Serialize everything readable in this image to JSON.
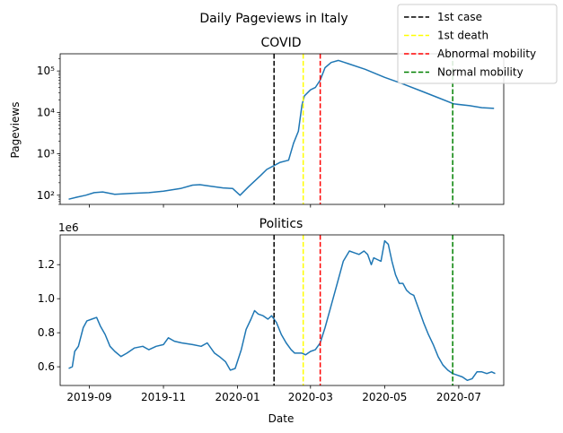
{
  "chart_data": [
    {
      "type": "line",
      "suptitle": "Daily Pageviews in Italy",
      "title": "COVID",
      "xlabel": "",
      "ylabel": "Pageviews",
      "yscale": "log",
      "ylim": [
        60,
        260000
      ],
      "yticks": [
        100,
        1000,
        10000,
        100000
      ],
      "ytick_labels": [
        "10²",
        "10³",
        "10⁴",
        "10⁵"
      ],
      "series": [
        {
          "color": "#1f77b4",
          "x": [
            "2019-08-15",
            "2019-08-22",
            "2019-08-29",
            "2019-09-05",
            "2019-09-12",
            "2019-09-22",
            "2019-10-05",
            "2019-10-20",
            "2019-11-01",
            "2019-11-15",
            "2019-11-25",
            "2019-12-01",
            "2019-12-10",
            "2019-12-20",
            "2019-12-28",
            "2020-01-03",
            "2020-01-10",
            "2020-01-20",
            "2020-01-25",
            "2020-01-31",
            "2020-02-05",
            "2020-02-12",
            "2020-02-16",
            "2020-02-20",
            "2020-02-23",
            "2020-02-25",
            "2020-03-01",
            "2020-03-05",
            "2020-03-09",
            "2020-03-13",
            "2020-03-18",
            "2020-03-24",
            "2020-04-01",
            "2020-04-15",
            "2020-05-01",
            "2020-05-15",
            "2020-06-01",
            "2020-06-15",
            "2020-06-27",
            "2020-07-10",
            "2020-07-20",
            "2020-07-30"
          ],
          "y": [
            80,
            90,
            100,
            115,
            120,
            105,
            110,
            115,
            125,
            145,
            175,
            180,
            165,
            150,
            145,
            100,
            160,
            300,
            420,
            520,
            620,
            700,
            1800,
            3500,
            15000,
            25000,
            35000,
            40000,
            60000,
            120000,
            160000,
            180000,
            150000,
            110000,
            70000,
            50000,
            32000,
            22000,
            16000,
            14500,
            13000,
            12500
          ]
        }
      ],
      "vlines": [
        {
          "date": "2020-01-31",
          "label": "1st case",
          "color": "#000000"
        },
        {
          "date": "2020-02-24",
          "label": "1st death",
          "color": "#ffff00"
        },
        {
          "date": "2020-03-09",
          "label": "Abnormal mobility",
          "color": "#ff0000"
        },
        {
          "date": "2020-06-26",
          "label": "Normal mobility",
          "color": "#008000"
        }
      ]
    },
    {
      "type": "line",
      "title": "Politics",
      "xlabel": "Date",
      "ylabel": "",
      "offset_label": "1e6",
      "ylim": [
        0.49,
        1.375
      ],
      "yticks": [
        0.6,
        0.8,
        1.0,
        1.2
      ],
      "ytick_labels": [
        "0.6",
        "0.8",
        "1.0",
        "1.2"
      ],
      "xticks": [
        "2019-09-01",
        "2019-11-01",
        "2020-01-01",
        "2020-03-01",
        "2020-05-01",
        "2020-07-01"
      ],
      "xtick_labels": [
        "2019-09",
        "2019-11",
        "2020-01",
        "2020-03",
        "2020-05",
        "2020-07"
      ],
      "series": [
        {
          "color": "#1f77b4",
          "x": [
            "2019-08-15",
            "2019-08-18",
            "2019-08-20",
            "2019-08-23",
            "2019-08-27",
            "2019-08-30",
            "2019-09-03",
            "2019-09-07",
            "2019-09-10",
            "2019-09-14",
            "2019-09-18",
            "2019-09-22",
            "2019-09-27",
            "2019-10-02",
            "2019-10-08",
            "2019-10-15",
            "2019-10-20",
            "2019-10-26",
            "2019-11-01",
            "2019-11-05",
            "2019-11-10",
            "2019-11-16",
            "2019-11-25",
            "2019-12-02",
            "2019-12-07",
            "2019-12-13",
            "2019-12-17",
            "2019-12-22",
            "2019-12-26",
            "2019-12-30",
            "2020-01-04",
            "2020-01-08",
            "2020-01-12",
            "2020-01-15",
            "2020-01-18",
            "2020-01-22",
            "2020-01-26",
            "2020-01-29",
            "2020-02-02",
            "2020-02-06",
            "2020-02-10",
            "2020-02-14",
            "2020-02-17",
            "2020-02-20",
            "2020-02-23",
            "2020-02-26",
            "2020-03-01",
            "2020-03-05",
            "2020-03-09",
            "2020-03-13",
            "2020-03-18",
            "2020-03-23",
            "2020-03-28",
            "2020-04-02",
            "2020-04-06",
            "2020-04-10",
            "2020-04-14",
            "2020-04-17",
            "2020-04-20",
            "2020-04-22",
            "2020-04-25",
            "2020-04-28",
            "2020-05-01",
            "2020-05-04",
            "2020-05-07",
            "2020-05-10",
            "2020-05-13",
            "2020-05-16",
            "2020-05-19",
            "2020-05-22",
            "2020-05-25",
            "2020-05-29",
            "2020-06-02",
            "2020-06-06",
            "2020-06-10",
            "2020-06-14",
            "2020-06-18",
            "2020-06-22",
            "2020-06-26",
            "2020-06-30",
            "2020-07-04",
            "2020-07-08",
            "2020-07-12",
            "2020-07-16",
            "2020-07-20",
            "2020-07-24",
            "2020-07-28",
            "2020-07-31"
          ],
          "y": [
            0.59,
            0.6,
            0.69,
            0.72,
            0.83,
            0.87,
            0.88,
            0.89,
            0.84,
            0.79,
            0.72,
            0.69,
            0.66,
            0.68,
            0.71,
            0.72,
            0.7,
            0.72,
            0.73,
            0.77,
            0.75,
            0.74,
            0.73,
            0.72,
            0.74,
            0.68,
            0.66,
            0.63,
            0.58,
            0.59,
            0.7,
            0.82,
            0.88,
            0.93,
            0.91,
            0.9,
            0.88,
            0.9,
            0.86,
            0.79,
            0.74,
            0.7,
            0.68,
            0.68,
            0.68,
            0.67,
            0.69,
            0.7,
            0.74,
            0.83,
            0.96,
            1.09,
            1.22,
            1.28,
            1.27,
            1.26,
            1.28,
            1.26,
            1.2,
            1.24,
            1.23,
            1.22,
            1.34,
            1.32,
            1.22,
            1.14,
            1.09,
            1.09,
            1.05,
            1.03,
            1.02,
            0.94,
            0.86,
            0.79,
            0.73,
            0.66,
            0.61,
            0.58,
            0.56,
            0.55,
            0.54,
            0.52,
            0.53,
            0.57,
            0.57,
            0.56,
            0.57,
            0.56
          ]
        }
      ],
      "vlines": [
        {
          "date": "2020-01-31",
          "color": "#000000"
        },
        {
          "date": "2020-02-24",
          "color": "#ffff00"
        },
        {
          "date": "2020-03-09",
          "color": "#ff0000"
        },
        {
          "date": "2020-06-26",
          "color": "#008000"
        }
      ]
    }
  ],
  "legend": {
    "placement": "top-right",
    "items": [
      {
        "label": "1st case",
        "color": "#000000"
      },
      {
        "label": "1st death",
        "color": "#ffff00"
      },
      {
        "label": "Abnormal mobility",
        "color": "#ff0000"
      },
      {
        "label": "Normal mobility",
        "color": "#008000"
      }
    ]
  }
}
